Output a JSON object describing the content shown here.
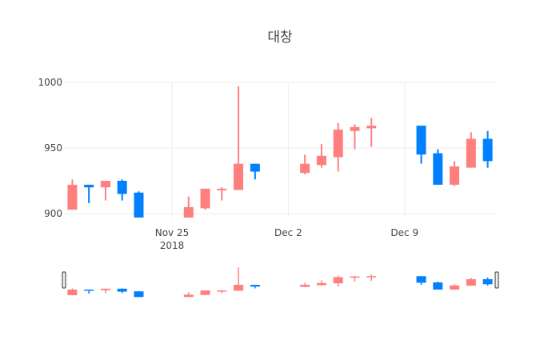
{
  "title": "대창",
  "colors": {
    "increasing": "#FF7F7F",
    "decreasing": "#0080FF",
    "grid": "#eeeeee",
    "text": "#444444"
  },
  "chart_data": {
    "type": "candlestick",
    "title": "대창",
    "xlabel": "",
    "ylabel": "",
    "ylim": [
      895,
      1000
    ],
    "y_ticks": [
      900,
      950,
      1000
    ],
    "x_ticks": [
      {
        "date": "2018-11-25",
        "label": "Nov 25",
        "sublabel": "2018"
      },
      {
        "date": "2018-12-02",
        "label": "Dec 2",
        "sublabel": ""
      },
      {
        "date": "2018-12-09",
        "label": "Dec 9",
        "sublabel": ""
      }
    ],
    "x_range": [
      "2018-11-18T12:00",
      "2018-12-14T12:00"
    ],
    "grid": true,
    "legend": false,
    "rangeslider": true,
    "series": [
      {
        "date": "2018-11-19",
        "open": 903,
        "high": 926,
        "low": 903,
        "close": 922
      },
      {
        "date": "2018-11-20",
        "open": 922,
        "high": 922,
        "low": 908,
        "close": 920
      },
      {
        "date": "2018-11-21",
        "open": 920,
        "high": 925,
        "low": 910,
        "close": 925
      },
      {
        "date": "2018-11-22",
        "open": 925,
        "high": 926,
        "low": 910,
        "close": 915
      },
      {
        "date": "2018-11-23",
        "open": 916,
        "high": 917,
        "low": 897,
        "close": 897
      },
      {
        "date": "2018-11-26",
        "open": 897,
        "high": 913,
        "low": 897,
        "close": 905
      },
      {
        "date": "2018-11-27",
        "open": 904,
        "high": 919,
        "low": 903,
        "close": 919
      },
      {
        "date": "2018-11-28",
        "open": 918,
        "high": 920,
        "low": 910,
        "close": 919
      },
      {
        "date": "2018-11-29",
        "open": 918,
        "high": 997,
        "low": 918,
        "close": 938
      },
      {
        "date": "2018-11-30",
        "open": 938,
        "high": 938,
        "low": 926,
        "close": 932
      },
      {
        "date": "2018-12-03",
        "open": 931,
        "high": 945,
        "low": 930,
        "close": 938
      },
      {
        "date": "2018-12-04",
        "open": 937,
        "high": 953,
        "low": 935,
        "close": 944
      },
      {
        "date": "2018-12-05",
        "open": 943,
        "high": 969,
        "low": 932,
        "close": 964
      },
      {
        "date": "2018-12-06",
        "open": 963,
        "high": 968,
        "low": 949,
        "close": 966
      },
      {
        "date": "2018-12-07",
        "open": 965,
        "high": 973,
        "low": 951,
        "close": 967
      },
      {
        "date": "2018-12-10",
        "open": 967,
        "high": 967,
        "low": 938,
        "close": 945
      },
      {
        "date": "2018-12-11",
        "open": 946,
        "high": 949,
        "low": 922,
        "close": 922
      },
      {
        "date": "2018-12-12",
        "open": 922,
        "high": 940,
        "low": 921,
        "close": 936
      },
      {
        "date": "2018-12-13",
        "open": 935,
        "high": 962,
        "low": 935,
        "close": 957
      },
      {
        "date": "2018-12-14",
        "open": 957,
        "high": 963,
        "low": 935,
        "close": 940
      }
    ]
  }
}
